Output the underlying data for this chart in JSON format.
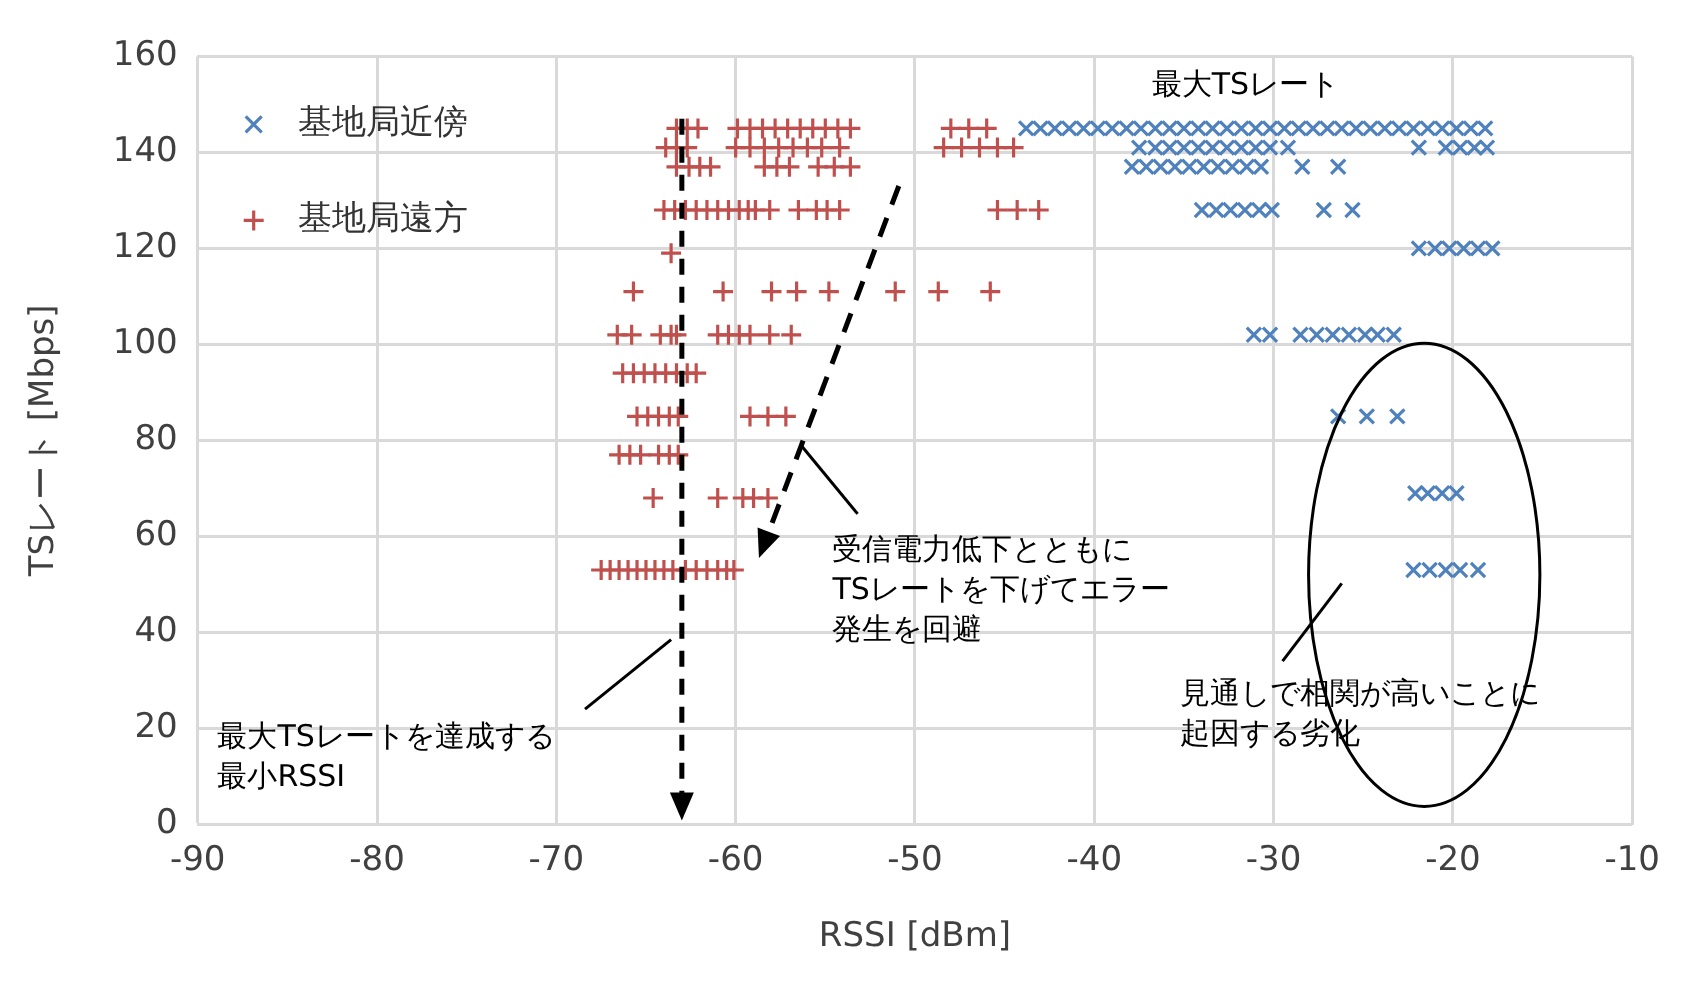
{
  "chart_data": {
    "type": "scatter",
    "xlabel": "RSSI [dBm]",
    "ylabel": "TSレート [Mbps]",
    "xlim": [
      -90,
      -10
    ],
    "xticks": [
      -90,
      -80,
      -70,
      -60,
      -50,
      -40,
      -30,
      -20,
      -10
    ],
    "ylim": [
      0,
      160
    ],
    "yticks": [
      0,
      20,
      40,
      60,
      80,
      100,
      120,
      140,
      160
    ],
    "grid": true,
    "legend": "top left",
    "series": [
      {
        "name": "基地局近傍",
        "color": "#4f81bd",
        "marker": "cross",
        "x": [
          -43.8,
          -43,
          -42.2,
          -41.4,
          -40.6,
          -39.8,
          -39,
          -38.2,
          -37.4,
          -36.6,
          -35.8,
          -35,
          -34.2,
          -33.4,
          -32.6,
          -31.8,
          -31,
          -30.2,
          -29.4,
          -28.6,
          -27.8,
          -27,
          -26.2,
          -25.4,
          -24.6,
          -23.8,
          -23,
          -22.2,
          -21.4,
          -20.6,
          -19.8,
          -19,
          -18.2,
          -37.5,
          -36.6,
          -35.8,
          -35,
          -34.2,
          -33.4,
          -32.6,
          -31.8,
          -31,
          -30.2,
          -29.2,
          -21.9,
          -20.4,
          -19.6,
          -18.8,
          -18.1,
          -37.9,
          -37.1,
          -36.3,
          -35.5,
          -34.7,
          -33.9,
          -33.1,
          -32.3,
          -31.5,
          -30.7,
          -28.4,
          -26.4,
          -34,
          -33.2,
          -32.4,
          -31.6,
          -30.8,
          -30.1,
          -27.2,
          -25.6,
          -21.9,
          -21,
          -20.2,
          -19.4,
          -18.6,
          -17.8,
          -31.1,
          -30.2,
          -28.5,
          -27.6,
          -26.7,
          -25.8,
          -24.9,
          -24.2,
          -23.3,
          -26.4,
          -24.8,
          -23.1,
          -22.1,
          -21.4,
          -20.6,
          -19.8,
          -22.2,
          -21.3,
          -20.4,
          -19.6,
          -18.6
        ],
        "values": [
          145,
          145,
          145,
          145,
          145,
          145,
          145,
          145,
          145,
          145,
          145,
          145,
          145,
          145,
          145,
          145,
          145,
          145,
          145,
          145,
          145,
          145,
          145,
          145,
          145,
          145,
          145,
          145,
          145,
          145,
          145,
          145,
          145,
          141,
          141,
          141,
          141,
          141,
          141,
          141,
          141,
          141,
          141,
          141,
          141,
          141,
          141,
          141,
          141,
          137,
          137,
          137,
          137,
          137,
          137,
          137,
          137,
          137,
          137,
          137,
          137,
          128,
          128,
          128,
          128,
          128,
          128,
          128,
          128,
          120,
          120,
          120,
          120,
          120,
          120,
          102,
          102,
          102,
          102,
          102,
          102,
          102,
          102,
          102,
          85,
          85,
          85,
          69,
          69,
          69,
          69,
          53,
          53,
          53,
          53,
          53
        ]
      },
      {
        "name": "基地局遠方",
        "color": "#c0504d",
        "marker": "plus",
        "x": [
          -63.3,
          -62.7,
          -62.1,
          -59.9,
          -59.2,
          -58.5,
          -57.8,
          -57.1,
          -56.4,
          -55.7,
          -55,
          -54.3,
          -53.6,
          -48,
          -47,
          -46,
          -63.9,
          -63.3,
          -62.7,
          -60,
          -59.2,
          -58.4,
          -57.6,
          -56.8,
          -56,
          -55.2,
          -54.2,
          -48.4,
          -47.4,
          -46.4,
          -45.4,
          -44.5,
          -63.3,
          -62.6,
          -62,
          -61.4,
          -58.4,
          -57.7,
          -57,
          -55.4,
          -54.5,
          -53.6,
          -64,
          -63.4,
          -62.8,
          -62.2,
          -61.6,
          -61,
          -60.4,
          -59.8,
          -59.3,
          -58.9,
          -58.1,
          -56.5,
          -55.5,
          -54.9,
          -54.2,
          -45.4,
          -44.3,
          -43.1,
          -63.6,
          -65.7,
          -60.7,
          -58,
          -56.6,
          -54.8,
          -51.1,
          -48.7,
          -45.8,
          -66.6,
          -65.8,
          -64.2,
          -63.6,
          -63.3,
          -61,
          -60.4,
          -59.8,
          -59.2,
          -58.1,
          -56.9,
          -66.3,
          -65.7,
          -65.1,
          -64.5,
          -63.9,
          -63.3,
          -62.7,
          -62.2,
          -65.5,
          -64.9,
          -64.3,
          -63.7,
          -63.2,
          -59.2,
          -58.2,
          -57.2,
          -66.5,
          -65.9,
          -65.3,
          -64.3,
          -63.7,
          -63.2,
          -64.6,
          -61,
          -59.6,
          -59,
          -58.2,
          -67.5,
          -67,
          -66.5,
          -66,
          -65.5,
          -65,
          -64.5,
          -64,
          -63.5,
          -62.8,
          -62.2,
          -61.6,
          -61,
          -60.5,
          -60.1
        ],
        "values": [
          145,
          145,
          145,
          145,
          145,
          145,
          145,
          145,
          145,
          145,
          145,
          145,
          145,
          145,
          145,
          145,
          141,
          141,
          141,
          141,
          141,
          141,
          141,
          141,
          141,
          141,
          141,
          141,
          141,
          141,
          141,
          141,
          137,
          137,
          137,
          137,
          137,
          137,
          137,
          137,
          137,
          137,
          128,
          128,
          128,
          128,
          128,
          128,
          128,
          128,
          128,
          128,
          128,
          128,
          128,
          128,
          128,
          128,
          128,
          128,
          119,
          111,
          111,
          111,
          111,
          111,
          111,
          111,
          111,
          102,
          102,
          102,
          102,
          102,
          102,
          102,
          102,
          102,
          102,
          102,
          94,
          94,
          94,
          94,
          94,
          94,
          94,
          94,
          85,
          85,
          85,
          85,
          85,
          85,
          85,
          85,
          77,
          77,
          77,
          77,
          77,
          77,
          68,
          68,
          68,
          68,
          68,
          53,
          53,
          53,
          53,
          53,
          53,
          53,
          53,
          53,
          53,
          53,
          53,
          53,
          53,
          53
        ]
      }
    ],
    "ref_lines": [
      {
        "axis": "x",
        "value": -63,
        "label": "最大TSレートを達成する最小RSSI",
        "color": "#000000",
        "line_style": "dashed"
      }
    ],
    "annotations": [
      "最大TSレート",
      "受信電力低下とともに",
      "TSレートを下げてエラー",
      "発生を回避",
      "見通しで相関が高いことに",
      "起因する劣化"
    ]
  }
}
